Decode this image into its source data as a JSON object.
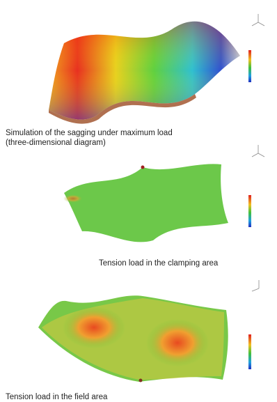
{
  "figures": [
    {
      "caption_lines": [
        "Simulation of the sagging under maximum load",
        "(three-dimensional diagram)"
      ]
    },
    {
      "caption_lines": [
        "Tension load in the clamping area"
      ]
    },
    {
      "caption_lines": [
        "Tension load in the field area"
      ]
    }
  ]
}
